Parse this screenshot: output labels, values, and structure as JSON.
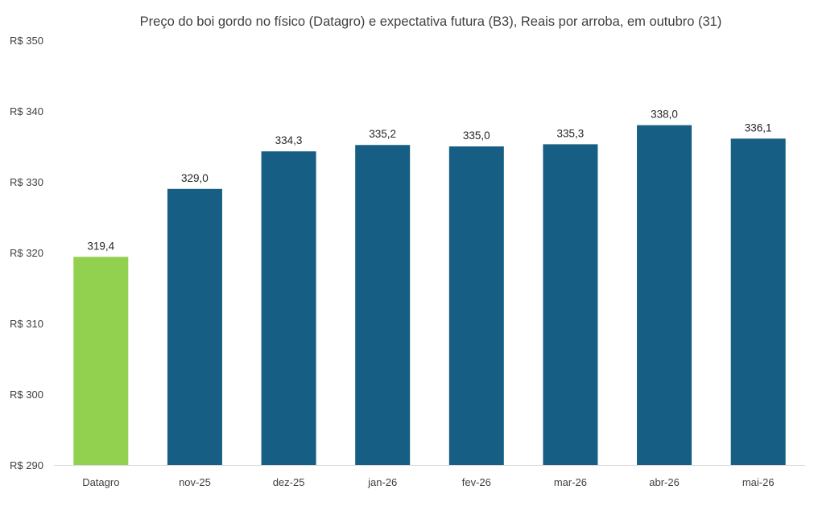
{
  "chart_data": {
    "type": "bar",
    "title": "Preço do boi gordo no físico (Datagro)  e expectativa futura (B3), Reais por arroba, em outubro (31)",
    "categories": [
      "Datagro",
      "nov-25",
      "dez-25",
      "jan-26",
      "fev-26",
      "mar-26",
      "abr-26",
      "mai-26"
    ],
    "values": [
      319.4,
      329.0,
      334.3,
      335.2,
      335.0,
      335.3,
      338.0,
      336.1
    ],
    "value_labels": [
      "319,4",
      "329,0",
      "334,3",
      "335,2",
      "335,0",
      "335,3",
      "338,0",
      "336,1"
    ],
    "yticks": [
      290,
      300,
      310,
      320,
      330,
      340,
      350
    ],
    "ytick_labels": [
      "R$ 290",
      "R$ 300",
      "R$ 310",
      "R$ 320",
      "R$ 330",
      "R$ 340",
      "R$ 350"
    ],
    "ylim": [
      290,
      350
    ],
    "grid": false,
    "colors": {
      "highlight": "#92d050",
      "default": "#165e83",
      "axis": "#d9d9d9"
    },
    "highlight_index": 0
  }
}
